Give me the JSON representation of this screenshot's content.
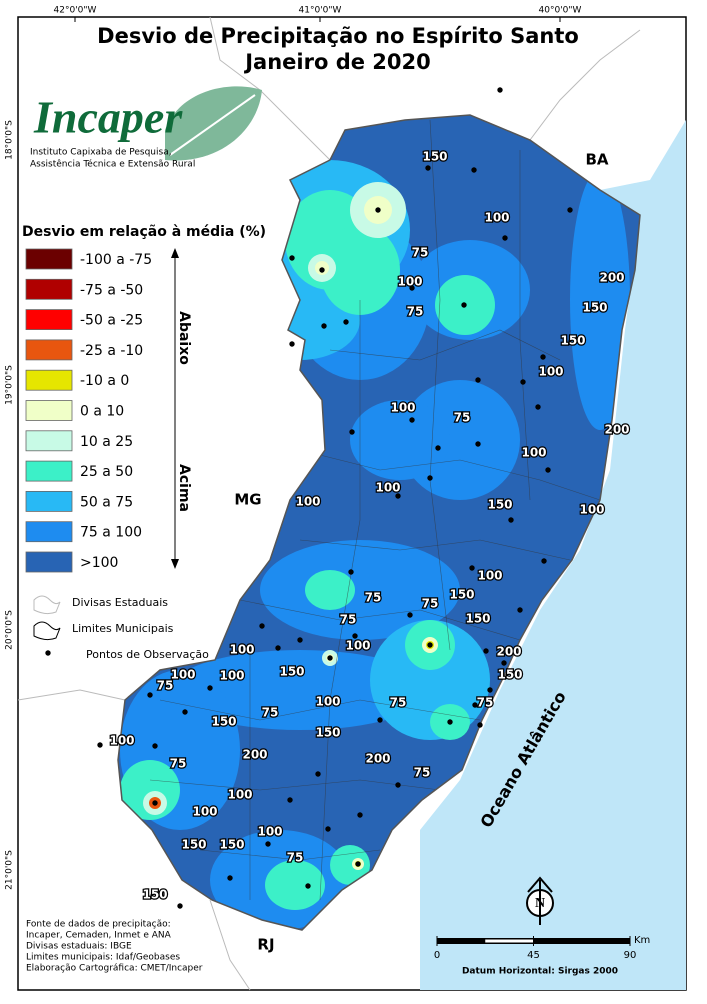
{
  "map": {
    "title": [
      "Desvio de Precipitação no Espírito Santo",
      "Janeiro de 2020"
    ],
    "coordinates": {
      "top": [
        "42°0'0\"W",
        "41°0'0\"W",
        "40°0'0\"W"
      ],
      "left": [
        "18°0'0\"S",
        "19°0'0\"S",
        "20°0'0\"S",
        "21°0'0\"S"
      ]
    },
    "logo": {
      "name": "Incaper",
      "subtitle": [
        "Instituto Capixaba de Pesquisa,",
        "Assistência Técnica e Extensão Rural"
      ]
    },
    "legend": {
      "title": "Desvio em relação à média (%)",
      "items": [
        {
          "label": "-100 a -75",
          "color": "#6b0000"
        },
        {
          "label": "-75 a -50",
          "color": "#b00000"
        },
        {
          "label": "-50 a -25",
          "color": "#ff0000"
        },
        {
          "label": "-25 a -10",
          "color": "#e8560f"
        },
        {
          "label": "-10 a 0",
          "color": "#e6e600"
        },
        {
          "label": "0 a 10",
          "color": "#f0ffc8"
        },
        {
          "label": "10 a 25",
          "color": "#c8fae6"
        },
        {
          "label": "25 a 50",
          "color": "#3cf0c8"
        },
        {
          "label": "50 a 75",
          "color": "#28b9f5"
        },
        {
          "label": "75 a 100",
          "color": "#1e8cf0"
        },
        {
          ">100": null,
          "label": ">100",
          "color": "#2864b4"
        }
      ],
      "below": "Abaixo",
      "above": "Acima"
    },
    "regions": [
      "BA",
      "MG",
      "RJ"
    ],
    "ocean": "Oceano Atlântico",
    "contour_labels": [
      "150",
      "100",
      "75",
      "100",
      "75",
      "200",
      "150",
      "150",
      "100",
      "100",
      "75",
      "200",
      "100",
      "100",
      "150",
      "100",
      "100",
      "100",
      "75",
      "150",
      "75",
      "75",
      "100",
      "150",
      "200",
      "150",
      "100",
      "100",
      "100",
      "150",
      "75",
      "75",
      "75",
      "150",
      "75",
      "100",
      "150",
      "100",
      "200",
      "200",
      "75",
      "75",
      "100",
      "100",
      "100",
      "150",
      "150",
      "75",
      "150"
    ],
    "symbols": [
      "Divisas Estaduais",
      "Limites Municipais",
      "Pontos de Observação"
    ],
    "sources": [
      "Fonte de dados de precipitação:",
      "Incaper, Cemaden, Inmet e ANA",
      "Divisas estaduais: IBGE",
      "Limites municipais: Idaf/Geobases",
      "Elaboração Cartográfica: CMET/Incaper"
    ],
    "north": "N",
    "scale": {
      "unit": "Km",
      "ticks": [
        0,
        45,
        90
      ]
    },
    "datum": "Datum Horizontal: Sirgas 2000"
  }
}
